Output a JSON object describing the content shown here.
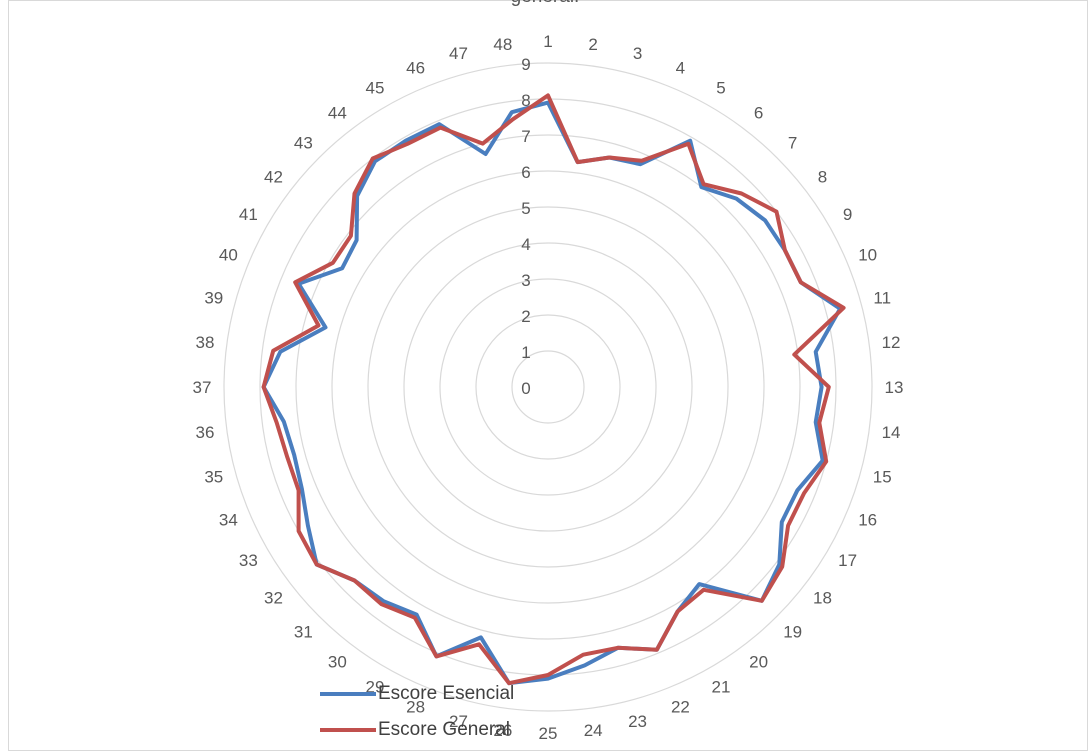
{
  "chart_data": {
    "type": "radar",
    "title": "general.",
    "categories": [
      "1",
      "2",
      "3",
      "4",
      "5",
      "6",
      "7",
      "8",
      "9",
      "10",
      "11",
      "12",
      "13",
      "14",
      "15",
      "16",
      "17",
      "18",
      "19",
      "20",
      "21",
      "22",
      "23",
      "24",
      "25",
      "26",
      "27",
      "28",
      "29",
      "30",
      "31",
      "32",
      "33",
      "34",
      "35",
      "36",
      "37",
      "38",
      "39",
      "40",
      "41",
      "42",
      "43",
      "44",
      "45",
      "46",
      "47",
      "48"
    ],
    "radial_ticks": [
      "0",
      "1",
      "2",
      "3",
      "4",
      "5",
      "6",
      "7",
      "8",
      "9"
    ],
    "rmax": 9,
    "grid": true,
    "legend_position": "bottom-left",
    "series": [
      {
        "name": "Escore Esencial",
        "color": "#4a7ebf",
        "values": [
          7.9,
          6.3,
          6.6,
          6.7,
          7.9,
          7.0,
          7.4,
          7.6,
          7.6,
          7.6,
          8.4,
          7.5,
          7.6,
          7.5,
          7.9,
          7.5,
          7.5,
          8.1,
          8.4,
          6.9,
          7.2,
          7.9,
          7.5,
          7.8,
          8.1,
          8.3,
          7.2,
          8.1,
          7.3,
          7.5,
          7.6,
          8.1,
          7.7,
          7.4,
          7.3,
          7.4,
          7.9,
          7.5,
          6.4,
          7.5,
          6.6,
          6.7,
          7.5,
          7.9,
          7.9,
          7.9,
          6.7,
          7.7
        ]
      },
      {
        "name": "Escore General",
        "color": "#c0504d",
        "values": [
          8.1,
          6.3,
          6.6,
          6.8,
          7.8,
          7.1,
          7.6,
          8.0,
          7.6,
          7.6,
          8.5,
          6.9,
          7.8,
          7.6,
          8.0,
          7.7,
          7.7,
          8.2,
          8.4,
          7.1,
          7.2,
          7.9,
          7.5,
          7.5,
          8.0,
          8.3,
          7.4,
          8.1,
          7.4,
          7.6,
          7.6,
          8.1,
          8.0,
          7.5,
          7.5,
          7.6,
          7.9,
          7.7,
          6.6,
          7.6,
          6.9,
          6.9,
          7.6,
          8.0,
          7.8,
          7.8,
          7.0,
          7.5
        ]
      }
    ]
  }
}
